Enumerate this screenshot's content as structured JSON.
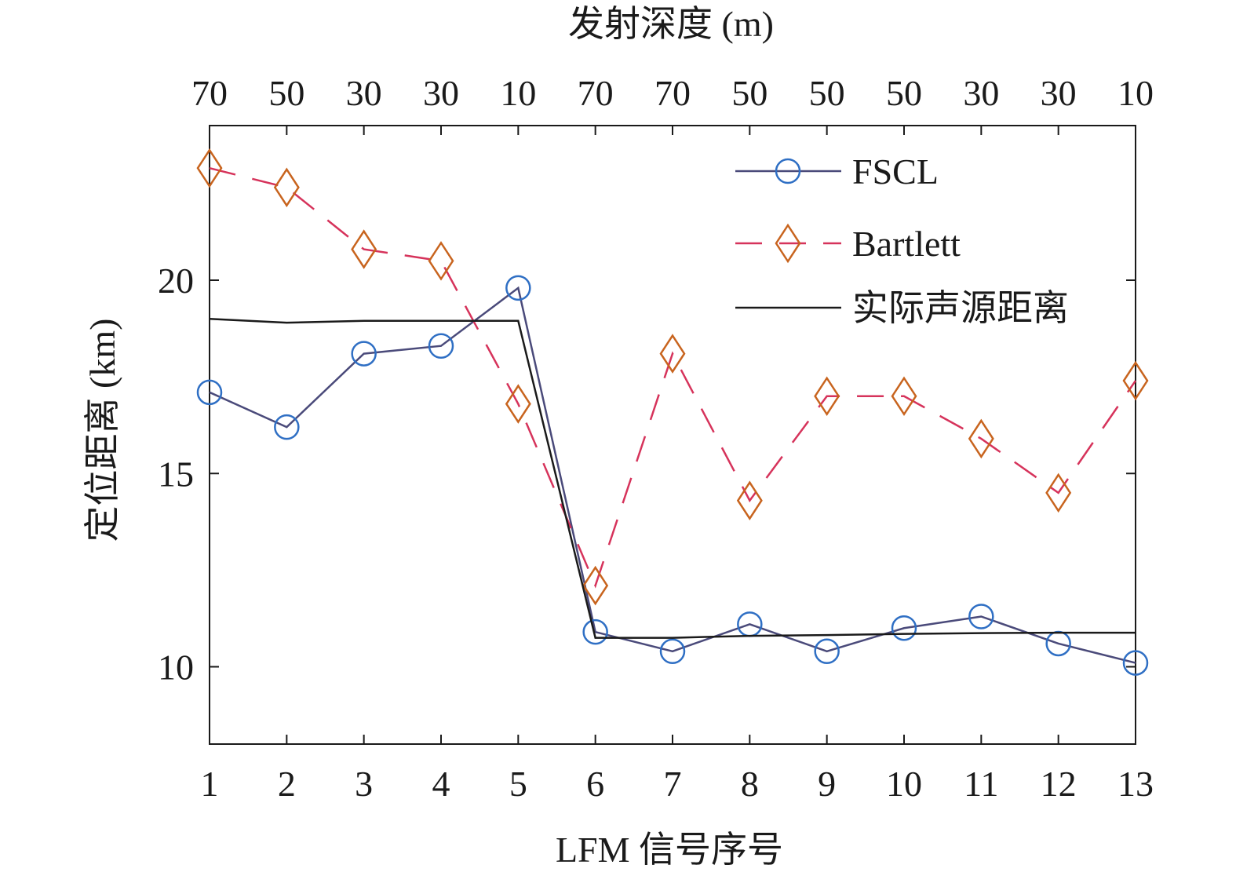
{
  "chart_data": {
    "type": "line",
    "xlabel": "LFM 信号序号",
    "ylabel": "定位距离 (km)",
    "top_axis_label": "发射深度 (m)",
    "x": [
      1,
      2,
      3,
      4,
      5,
      6,
      7,
      8,
      9,
      10,
      11,
      12,
      13
    ],
    "x_tick_labels": [
      "1",
      "2",
      "3",
      "4",
      "5",
      "6",
      "7",
      "8",
      "9",
      "10",
      "11",
      "12",
      "13"
    ],
    "top_tick_labels": [
      "70",
      "50",
      "30",
      "30",
      "10",
      "70",
      "70",
      "50",
      "50",
      "50",
      "30",
      "30",
      "10"
    ],
    "xlim": [
      1,
      13
    ],
    "ylim": [
      8,
      24
    ],
    "y_ticks": [
      10,
      15,
      20
    ],
    "y_tick_labels": [
      "10",
      "15",
      "20"
    ],
    "grid": false,
    "legend_position": "top-right",
    "series": [
      {
        "name": "FSCL",
        "marker": "circle",
        "line_style": "solid",
        "color": "#4a4a7a",
        "marker_color": "#2f6fc4",
        "values": [
          17.1,
          16.2,
          18.1,
          18.3,
          19.8,
          10.9,
          10.4,
          11.1,
          10.4,
          11.0,
          11.3,
          10.6,
          10.1
        ]
      },
      {
        "name": "Bartlett",
        "marker": "diamond",
        "line_style": "dashed",
        "color": "#d6335b",
        "marker_color": "#c8641e",
        "values": [
          22.9,
          22.4,
          20.8,
          20.5,
          16.8,
          12.1,
          18.1,
          14.3,
          17.0,
          17.0,
          15.9,
          14.5,
          17.4
        ]
      },
      {
        "name": "实际声源距离",
        "marker": "none",
        "line_style": "solid",
        "color": "#1a1a1a",
        "values": [
          19.0,
          18.9,
          18.95,
          18.95,
          18.95,
          10.75,
          10.75,
          10.8,
          10.82,
          10.85,
          10.87,
          10.88,
          10.88
        ]
      }
    ]
  }
}
